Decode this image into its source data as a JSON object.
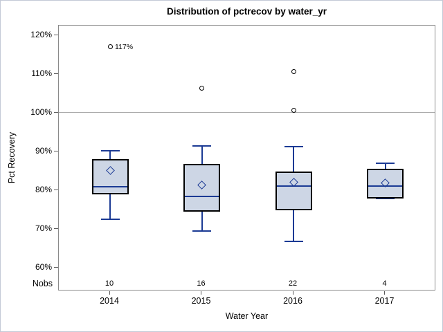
{
  "chart_data": {
    "type": "boxplot",
    "title": "Distribution of pctrecov by water_yr",
    "xlabel": "Water Year",
    "ylabel": "Pct Recovery",
    "categories": [
      "2014",
      "2015",
      "2016",
      "2017"
    ],
    "nobs_label": "Nobs",
    "nobs": [
      "10",
      "16",
      "22",
      "4"
    ],
    "yticks": [
      60,
      70,
      80,
      90,
      100,
      110,
      120
    ],
    "ytick_suffix": "%",
    "ylim": [
      53.9,
      122.5
    ],
    "refline": 100,
    "grid": false,
    "series": [
      {
        "category": "2014",
        "min": 72.4,
        "q1": 79.1,
        "median": 80.8,
        "q3": 87.9,
        "max": 90.1,
        "mean": 85.0,
        "outliers": [
          {
            "value": 117,
            "label": "117%"
          }
        ]
      },
      {
        "category": "2015",
        "min": 69.4,
        "q1": 74.6,
        "median": 78.4,
        "q3": 86.6,
        "max": 91.4,
        "mean": 81.4,
        "outliers": [
          {
            "value": 106.4,
            "label": ""
          }
        ]
      },
      {
        "category": "2016",
        "min": 66.8,
        "q1": 75.0,
        "median": 81.0,
        "q3": 84.6,
        "max": 91.3,
        "mean": 82.1,
        "outliers": [
          {
            "value": 110.7,
            "label": ""
          },
          {
            "value": 100.6,
            "label": ""
          }
        ]
      },
      {
        "category": "2017",
        "min": 77.8,
        "q1": 78.0,
        "median": 81.1,
        "q3": 85.4,
        "max": 86.9,
        "mean": 81.8,
        "outliers": []
      }
    ],
    "colors": {
      "box_fill": "#cdd6e5",
      "box_border": "#000000",
      "line": "#1b3a94",
      "refline": "#a8a8a8",
      "plot_border": "#8a8a8a",
      "tick": "#5a5a5a",
      "text": "#000000"
    }
  }
}
